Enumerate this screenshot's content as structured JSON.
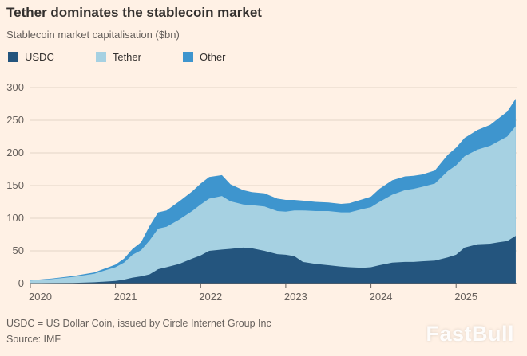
{
  "header": {
    "title": "Tether dominates the stablecoin market",
    "subtitle": "Stablecoin market capitalisation ($bn)"
  },
  "legend": {
    "items": [
      {
        "label": "USDC",
        "color": "#24557E"
      },
      {
        "label": "Tether",
        "color": "#A6D1E2"
      },
      {
        "label": "Other",
        "color": "#3E95CE"
      }
    ]
  },
  "footer": {
    "note": "USDC = US Dollar Coin, issued by Circle Internet Group Inc",
    "source": "Source: IMF"
  },
  "watermark": "FastBull",
  "colors": {
    "background": "#FFF1E5",
    "grid": "#E3D5C7",
    "axis": "#66605C",
    "text": "#66605C",
    "title": "#33302E"
  },
  "chart_data": {
    "type": "area",
    "stacked": true,
    "title": "Tether dominates the stablecoin market",
    "ylabel": "Stablecoin market capitalisation ($bn)",
    "xlabel": "",
    "grid": "horizontal",
    "legend_position": "top-left",
    "xlim": [
      2020,
      2025.72
    ],
    "ylim": [
      0,
      300
    ],
    "xticks": [
      2020,
      2021,
      2022,
      2023,
      2024,
      2025
    ],
    "yticks": [
      0,
      50,
      100,
      150,
      200,
      250,
      300
    ],
    "x": [
      2020.0,
      2020.25,
      2020.5,
      2020.75,
      2021.0,
      2021.1,
      2021.2,
      2021.3,
      2021.4,
      2021.5,
      2021.6,
      2021.75,
      2021.9,
      2022.0,
      2022.1,
      2022.25,
      2022.35,
      2022.5,
      2022.6,
      2022.75,
      2022.9,
      2023.0,
      2023.1,
      2023.2,
      2023.35,
      2023.5,
      2023.65,
      2023.75,
      2023.9,
      2024.0,
      2024.1,
      2024.25,
      2024.4,
      2024.5,
      2024.6,
      2024.75,
      2024.9,
      2025.0,
      2025.1,
      2025.25,
      2025.4,
      2025.5,
      2025.6,
      2025.7
    ],
    "series": [
      {
        "name": "USDC",
        "color": "#24557E",
        "values": [
          0.5,
          0.7,
          1,
          2,
          4,
          6,
          9,
          11,
          14,
          22,
          25,
          30,
          38,
          43,
          50,
          52,
          53,
          55,
          54,
          50,
          45,
          44,
          42,
          33,
          30,
          28,
          26,
          25,
          24,
          25,
          28,
          32,
          33,
          33,
          34,
          35,
          40,
          44,
          55,
          60,
          61,
          63,
          65,
          73
        ]
      },
      {
        "name": "Tether",
        "color": "#A6D1E2",
        "values": [
          4,
          6,
          9,
          13,
          21,
          26,
          35,
          40,
          52,
          62,
          62,
          68,
          73,
          78,
          80,
          82,
          73,
          66,
          66,
          68,
          66,
          66,
          70,
          79,
          81,
          83,
          83,
          84,
          90,
          92,
          97,
          104,
          110,
          112,
          114,
          118,
          132,
          137,
          140,
          145,
          150,
          155,
          160,
          168
        ]
      },
      {
        "name": "Other",
        "color": "#3E95CE",
        "values": [
          0.5,
          1,
          1.5,
          2,
          4,
          6,
          9,
          12,
          22,
          25,
          25,
          28,
          30,
          32,
          33,
          32,
          26,
          22,
          20,
          20,
          19,
          18,
          16,
          15,
          14,
          13,
          13,
          14,
          15,
          16,
          20,
          22,
          21,
          20,
          19,
          20,
          25,
          27,
          28,
          30,
          32,
          35,
          38,
          42
        ]
      }
    ]
  }
}
